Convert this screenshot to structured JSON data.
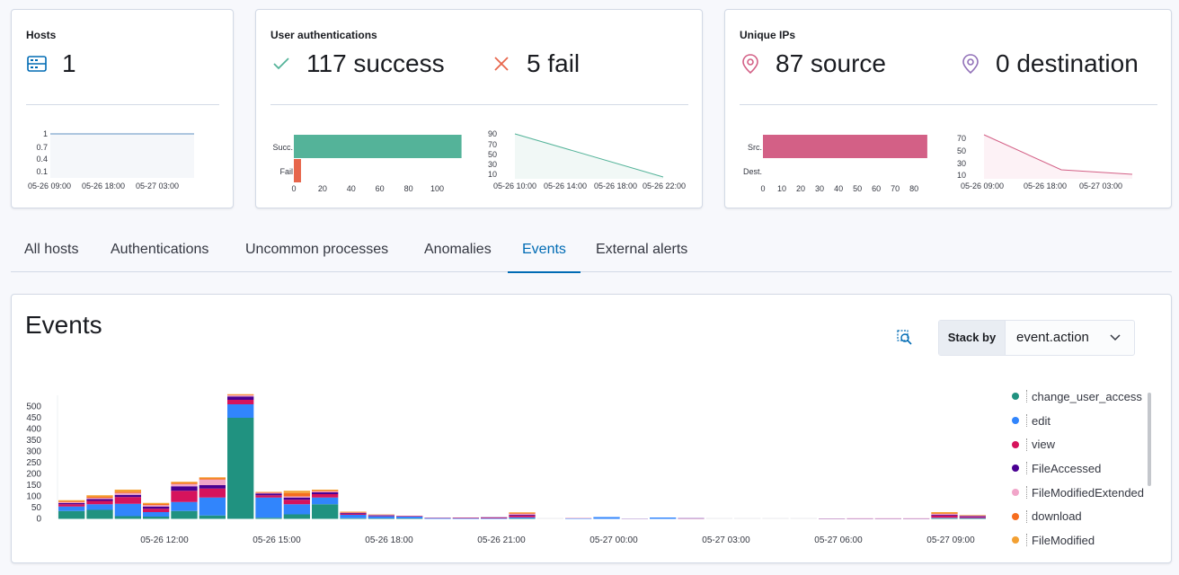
{
  "hosts": {
    "title": "Hosts",
    "value": "1",
    "icon": "server-icon",
    "chart": {
      "type": "area",
      "y_ticks": [
        "1",
        "0.7",
        "0.4",
        "0.1"
      ],
      "x_ticks": [
        "05-26 09:00",
        "05-26 18:00",
        "05-27 03:00"
      ]
    }
  },
  "auth": {
    "title": "User authentications",
    "success": "117 success",
    "fail": "5 fail",
    "success_color": "#54b399",
    "fail_color": "#e7664c",
    "bar": {
      "categories": [
        "Succ.",
        "Fail"
      ],
      "values": [
        117,
        5
      ],
      "x_ticks": [
        "0",
        "20",
        "40",
        "60",
        "80",
        "100"
      ]
    },
    "area": {
      "y_ticks": [
        "90",
        "70",
        "50",
        "30",
        "10"
      ],
      "x_ticks": [
        "05-26 10:00",
        "05-26 14:00",
        "05-26 18:00",
        "05-26 22:00"
      ]
    }
  },
  "ips": {
    "title": "Unique IPs",
    "source": "87 source",
    "destination": "0 destination",
    "source_color": "#d36086",
    "dest_color": "#9170b8",
    "bar": {
      "categories": [
        "Src.",
        "Dest."
      ],
      "values": [
        87,
        0
      ],
      "x_ticks": [
        "0",
        "10",
        "20",
        "30",
        "40",
        "50",
        "60",
        "70",
        "80"
      ]
    },
    "area": {
      "y_ticks": [
        "70",
        "50",
        "30",
        "10"
      ],
      "x_ticks": [
        "05-26 09:00",
        "05-26 18:00",
        "05-27 03:00"
      ]
    }
  },
  "tabs": [
    "All hosts",
    "Authentications",
    "Uncommon processes",
    "Anomalies",
    "Events",
    "External alerts"
  ],
  "events": {
    "title": "Events",
    "stack_by_label": "Stack by",
    "stack_by_value": "event.action",
    "legend": [
      {
        "label": "change_user_access",
        "color": "#209280"
      },
      {
        "label": "edit",
        "color": "#3185fc"
      },
      {
        "label": "view",
        "color": "#d6135c"
      },
      {
        "label": "FileAccessed",
        "color": "#490092"
      },
      {
        "label": "FileModifiedExtended",
        "color": "#f1a5c9"
      },
      {
        "label": "download",
        "color": "#f66d1e"
      },
      {
        "label": "FileModified",
        "color": "#f3a032"
      }
    ]
  },
  "chart_data": {
    "type": "bar",
    "y_ticks": [
      "0",
      "50",
      "100",
      "150",
      "200",
      "250",
      "300",
      "350",
      "400",
      "450",
      "500"
    ],
    "ylim": [
      0,
      550
    ],
    "x_ticks": [
      "05-26 12:00",
      "05-26 15:00",
      "05-26 18:00",
      "05-26 21:00",
      "05-27 00:00",
      "05-27 03:00",
      "05-27 06:00",
      "05-27 09:00"
    ],
    "bars": [
      [
        35,
        20,
        10,
        5,
        5,
        3,
        5
      ],
      [
        40,
        25,
        15,
        8,
        5,
        5,
        7
      ],
      [
        12,
        55,
        30,
        10,
        8,
        6,
        9
      ],
      [
        10,
        20,
        15,
        10,
        6,
        5,
        5
      ],
      [
        35,
        40,
        50,
        20,
        10,
        5,
        5
      ],
      [
        15,
        80,
        40,
        15,
        25,
        5,
        5
      ],
      [
        450,
        60,
        20,
        15,
        5,
        3,
        2
      ],
      [
        5,
        90,
        10,
        8,
        3,
        2,
        2
      ],
      [
        20,
        45,
        20,
        10,
        5,
        15,
        10
      ],
      [
        65,
        30,
        15,
        8,
        5,
        3,
        4
      ],
      [
        3,
        15,
        5,
        3,
        2,
        2,
        2
      ],
      [
        2,
        10,
        3,
        2,
        1,
        1,
        1
      ],
      [
        2,
        8,
        2,
        1,
        1,
        0,
        0
      ],
      [
        0,
        3,
        1,
        1,
        0,
        0,
        0
      ],
      [
        0,
        2,
        2,
        1,
        0,
        0,
        0
      ],
      [
        0,
        2,
        3,
        2,
        0,
        0,
        0
      ],
      [
        2,
        5,
        8,
        3,
        5,
        3,
        3
      ],
      [
        0,
        0,
        0,
        0,
        0,
        0,
        0
      ],
      [
        0,
        2,
        1,
        0,
        0,
        0,
        0
      ],
      [
        0,
        8,
        0,
        0,
        0,
        0,
        0
      ],
      [
        0,
        0,
        0,
        1,
        0,
        0,
        0
      ],
      [
        0,
        6,
        0,
        0,
        0,
        0,
        0
      ],
      [
        0,
        1,
        1,
        1,
        0,
        0,
        0
      ],
      [
        0,
        0,
        0,
        0,
        0,
        0,
        0
      ],
      [
        0,
        0,
        0,
        0,
        0,
        0,
        0
      ],
      [
        0,
        0,
        0,
        0,
        0,
        0,
        0
      ],
      [
        0,
        0,
        0,
        0,
        0,
        0,
        0
      ],
      [
        0,
        0,
        1,
        1,
        0,
        0,
        0
      ],
      [
        0,
        0,
        1,
        1,
        1,
        0,
        0
      ],
      [
        0,
        0,
        1,
        1,
        1,
        0,
        0
      ],
      [
        0,
        0,
        1,
        1,
        1,
        0,
        0
      ],
      [
        3,
        2,
        10,
        3,
        4,
        3,
        5
      ],
      [
        2,
        2,
        5,
        3,
        2,
        1,
        2
      ]
    ]
  }
}
